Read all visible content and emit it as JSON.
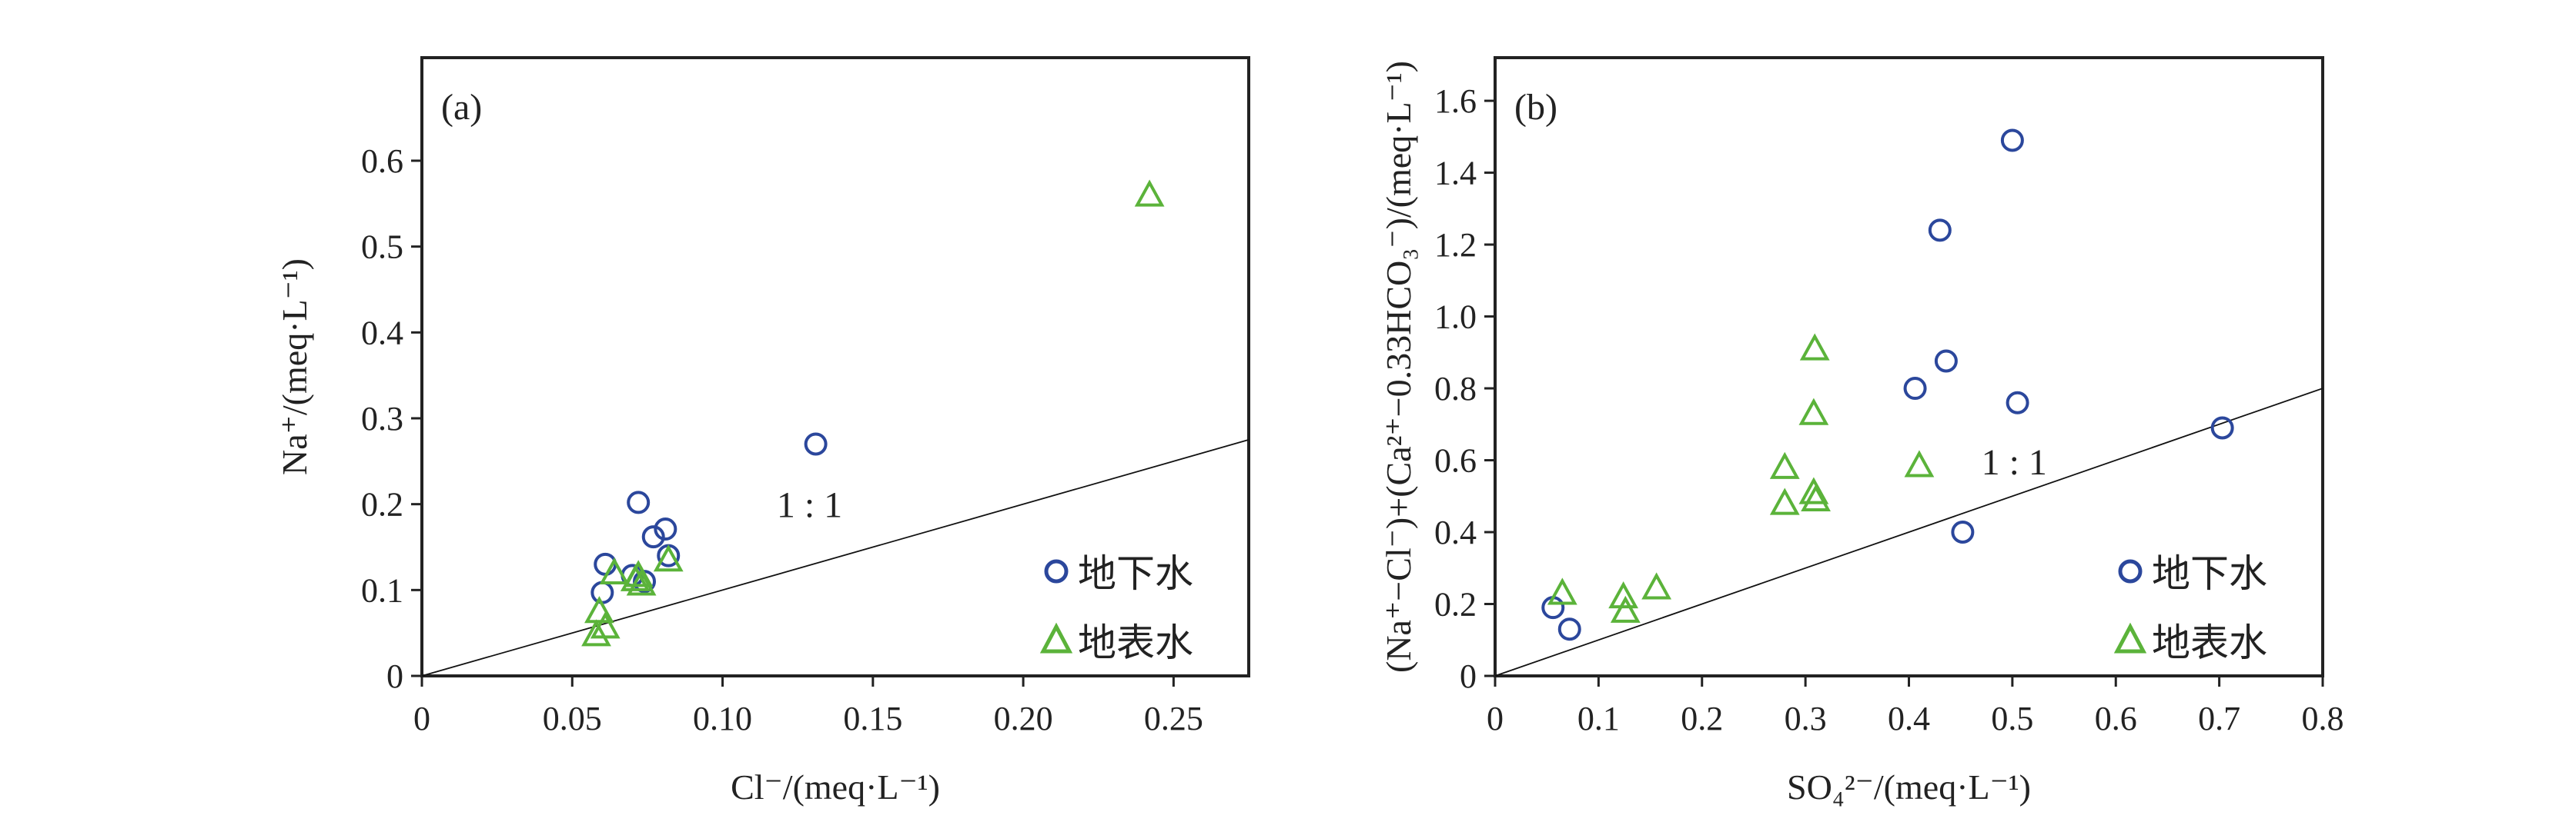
{
  "colors": {
    "groundwater": "#2b479c",
    "surface": "#5bb33a",
    "axis": "#222222"
  },
  "chart_data": [
    {
      "type": "scatter",
      "panel": "(a)",
      "xlabel": "Cl⁻/(meq·L⁻¹)",
      "ylabel": "Na⁺/(meq·L⁻¹)",
      "xlim": [
        0,
        0.275
      ],
      "ylim": [
        0,
        0.72
      ],
      "xticks": [
        0,
        0.05,
        0.1,
        0.15,
        0.2,
        0.25
      ],
      "xtick_labels": [
        "0",
        "0.05",
        "0.10",
        "0.15",
        "0.20",
        "0.25"
      ],
      "yticks": [
        0,
        0.1,
        0.2,
        0.3,
        0.4,
        0.5,
        0.6
      ],
      "ytick_labels": [
        "0",
        "0.1",
        "0.2",
        "0.3",
        "0.4",
        "0.5",
        "0.6"
      ],
      "reference_line": {
        "label": "1 : 1",
        "slope": 1
      },
      "legend": "bottom-right",
      "series": [
        {
          "name": "地下水",
          "marker": "circle",
          "points": [
            [
              0.131,
              0.27
            ],
            [
              0.072,
              0.202
            ],
            [
              0.081,
              0.171
            ],
            [
              0.077,
              0.162
            ],
            [
              0.082,
              0.14
            ],
            [
              0.061,
              0.13
            ],
            [
              0.07,
              0.117
            ],
            [
              0.074,
              0.11
            ],
            [
              0.06,
              0.097
            ]
          ]
        },
        {
          "name": "地表水",
          "marker": "triangle",
          "points": [
            [
              0.242,
              0.56
            ],
            [
              0.064,
              0.12
            ],
            [
              0.072,
              0.117
            ],
            [
              0.073,
              0.107
            ],
            [
              0.082,
              0.135
            ],
            [
              0.059,
              0.075
            ],
            [
              0.061,
              0.057
            ],
            [
              0.058,
              0.048
            ],
            [
              0.071,
              0.112
            ]
          ]
        }
      ]
    },
    {
      "type": "scatter",
      "panel": "(b)",
      "xlabel": "SO₄²⁻/(meq·L⁻¹)",
      "ylabel": "(Na⁺−Cl⁻)+(Ca²⁺−0.33HCO₃⁻)/(meq·L⁻¹)",
      "xlim": [
        0,
        0.8
      ],
      "ylim": [
        0,
        1.72
      ],
      "xticks": [
        0,
        0.1,
        0.2,
        0.3,
        0.4,
        0.5,
        0.6,
        0.7,
        0.8
      ],
      "xtick_labels": [
        "0",
        "0.1",
        "0.2",
        "0.3",
        "0.4",
        "0.5",
        "0.6",
        "0.7",
        "0.8"
      ],
      "yticks": [
        0,
        0.2,
        0.4,
        0.6,
        0.8,
        1.0,
        1.2,
        1.4,
        1.6
      ],
      "ytick_labels": [
        "0",
        "0.2",
        "0.4",
        "0.6",
        "0.8",
        "1.0",
        "1.2",
        "1.4",
        "1.6"
      ],
      "reference_line": {
        "label": "1 : 1",
        "slope": 1
      },
      "legend": "bottom-right",
      "series": [
        {
          "name": "地下水",
          "marker": "circle",
          "points": [
            [
              0.5,
              1.49
            ],
            [
              0.43,
              1.24
            ],
            [
              0.436,
              0.876
            ],
            [
              0.406,
              0.8
            ],
            [
              0.505,
              0.76
            ],
            [
              0.703,
              0.69
            ],
            [
              0.452,
              0.4
            ],
            [
              0.056,
              0.19
            ],
            [
              0.072,
              0.13
            ]
          ]
        },
        {
          "name": "地表水",
          "marker": "triangle",
          "points": [
            [
              0.309,
              0.91
            ],
            [
              0.308,
              0.73
            ],
            [
              0.28,
              0.58
            ],
            [
              0.41,
              0.585
            ],
            [
              0.28,
              0.48
            ],
            [
              0.31,
              0.49
            ],
            [
              0.308,
              0.51
            ],
            [
              0.065,
              0.23
            ],
            [
              0.124,
              0.22
            ],
            [
              0.156,
              0.245
            ],
            [
              0.126,
              0.18
            ]
          ]
        }
      ]
    }
  ]
}
